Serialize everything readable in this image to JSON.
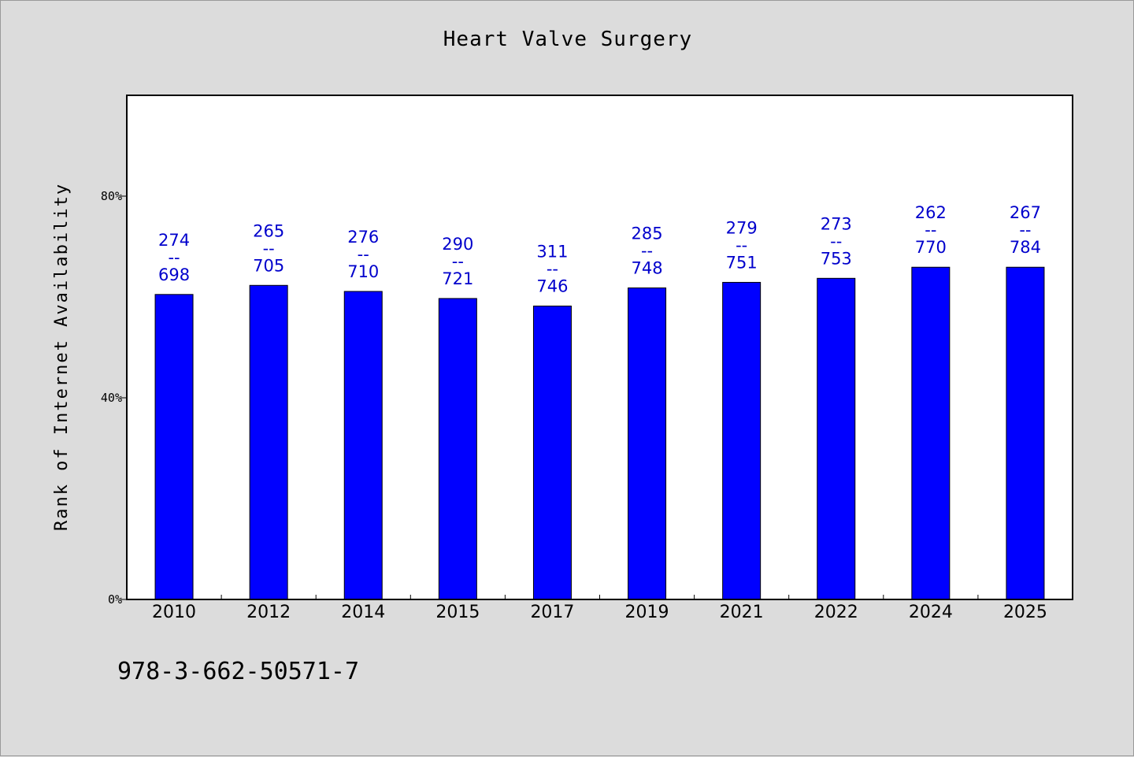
{
  "chart_data": {
    "type": "bar",
    "title": "Heart Valve Surgery",
    "xlabel": "",
    "ylabel": "Rank of Internet Availability",
    "categories": [
      "2010",
      "2012",
      "2014",
      "2015",
      "2017",
      "2019",
      "2021",
      "2022",
      "2024",
      "2025"
    ],
    "values": [
      60.5,
      62.3,
      61.1,
      59.7,
      58.2,
      61.8,
      62.9,
      63.7,
      65.9,
      65.9
    ],
    "data_labels": [
      [
        "274",
        "--",
        "698"
      ],
      [
        "265",
        "--",
        "705"
      ],
      [
        "276",
        "--",
        "710"
      ],
      [
        "290",
        "--",
        "721"
      ],
      [
        "311",
        "--",
        "746"
      ],
      [
        "285",
        "--",
        "748"
      ],
      [
        "279",
        "--",
        "751"
      ],
      [
        "273",
        "--",
        "753"
      ],
      [
        "262",
        "--",
        "770"
      ],
      [
        "267",
        "--",
        "784"
      ]
    ],
    "ylim": [
      0,
      100
    ],
    "yticks": [
      0,
      40,
      80
    ],
    "ytick_labels": [
      "0%",
      "40%",
      "80%"
    ],
    "grid": false,
    "bar_color": "#0000ff",
    "label_color": "#0000cc"
  },
  "footer": {
    "isbn": "978-3-662-50571-7"
  }
}
